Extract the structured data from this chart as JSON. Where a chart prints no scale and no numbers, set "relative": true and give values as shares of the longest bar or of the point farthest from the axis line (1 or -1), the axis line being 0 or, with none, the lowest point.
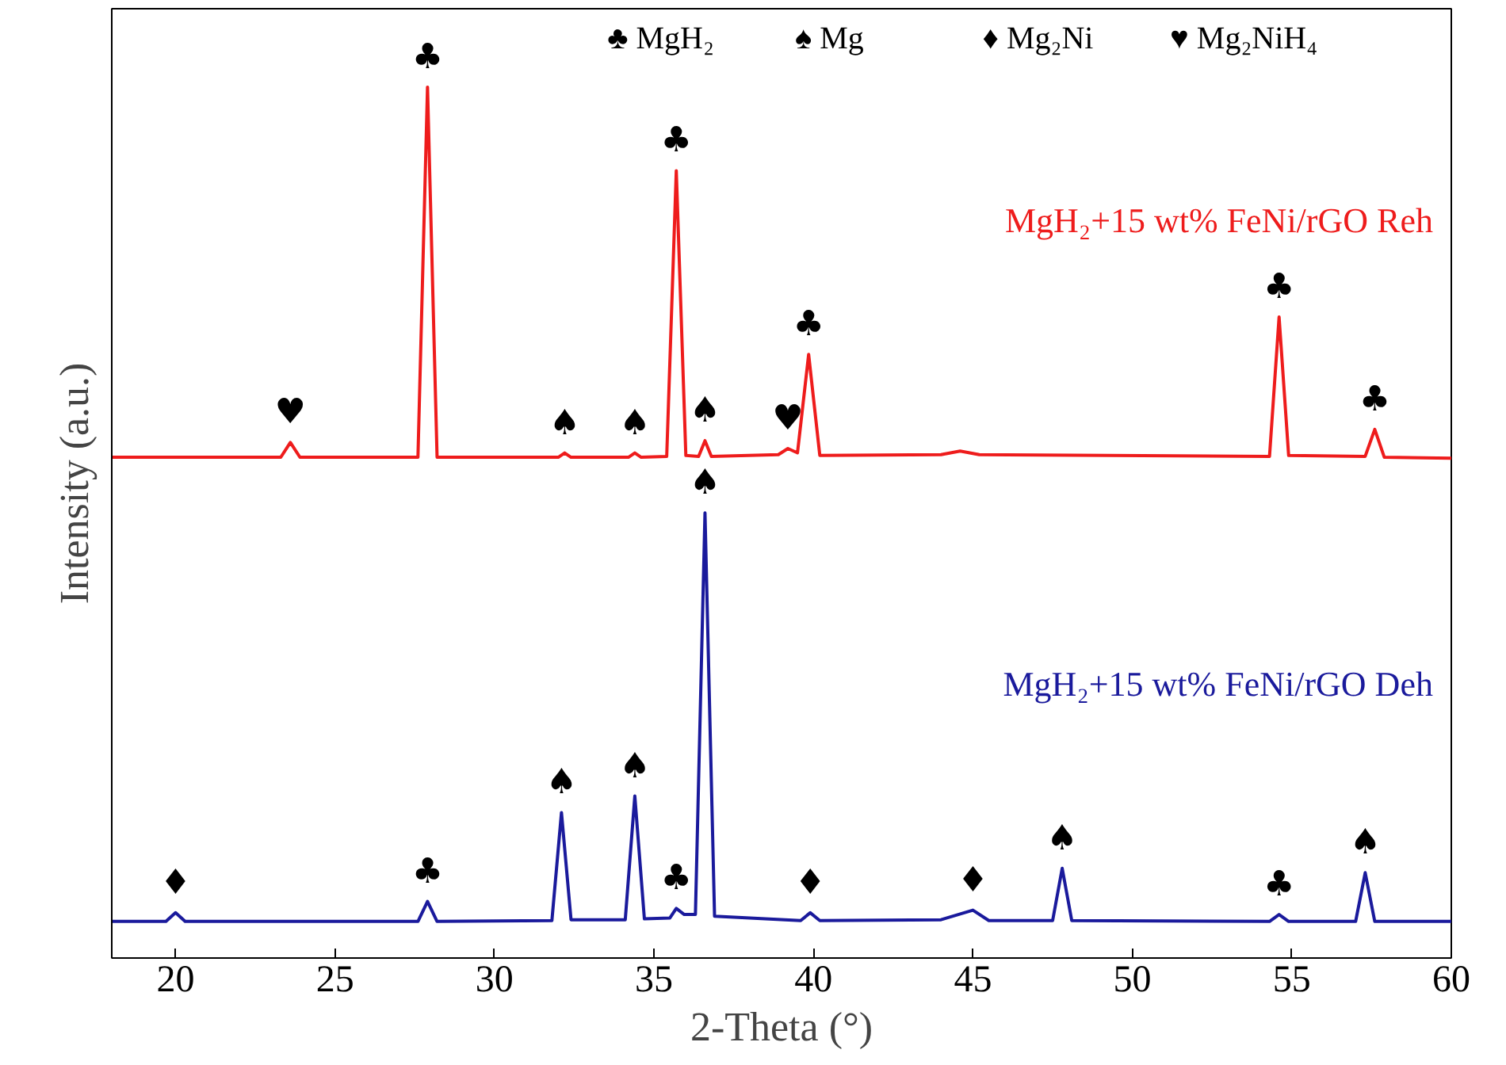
{
  "chart_data": {
    "type": "line",
    "relative": true,
    "xlabel": "2-Theta (°)",
    "ylabel": "Intensity (a.u.)",
    "xlim": [
      18,
      60
    ],
    "xticks": [
      20,
      25,
      30,
      35,
      40,
      45,
      50,
      55,
      60
    ],
    "tick_labels": "x",
    "grid": false,
    "line_style": "solid",
    "series": [
      {
        "name": "MgH₂+15 wt% FeNi/rGO  Reh",
        "color": "#ee1c1c",
        "x": [
          18,
          23.3,
          23.6,
          23.9,
          27.6,
          27.9,
          28.2,
          32.0,
          32.2,
          32.4,
          34.2,
          34.4,
          34.6,
          35.4,
          35.7,
          36.0,
          36.4,
          36.6,
          36.8,
          38.9,
          39.2,
          39.5,
          39.85,
          40.2,
          44.0,
          44.6,
          45.2,
          54.3,
          54.6,
          54.9,
          57.3,
          57.6,
          57.9,
          60
        ],
        "values": [
          0.575,
          0.575,
          0.592,
          0.575,
          0.575,
          1.0,
          0.575,
          0.575,
          0.58,
          0.575,
          0.575,
          0.58,
          0.575,
          0.576,
          0.904,
          0.577,
          0.576,
          0.594,
          0.576,
          0.578,
          0.585,
          0.58,
          0.693,
          0.577,
          0.578,
          0.582,
          0.578,
          0.576,
          0.736,
          0.577,
          0.576,
          0.607,
          0.575,
          0.574
        ]
      },
      {
        "name": "MgH₂+15 wt% FeNi/rGO  Deh",
        "color": "#1a1a9c",
        "x": [
          18,
          19.7,
          20.0,
          20.3,
          27.6,
          27.9,
          28.2,
          31.8,
          32.1,
          32.4,
          34.1,
          34.4,
          34.7,
          35.5,
          35.7,
          35.95,
          36.3,
          36.6,
          36.9,
          39.6,
          39.9,
          40.2,
          44.0,
          45.0,
          45.5,
          47.5,
          47.8,
          48.1,
          54.3,
          54.6,
          54.9,
          57.0,
          57.3,
          57.6,
          60
        ],
        "values": [
          0.042,
          0.042,
          0.052,
          0.042,
          0.042,
          0.065,
          0.042,
          0.043,
          0.167,
          0.044,
          0.044,
          0.186,
          0.045,
          0.046,
          0.057,
          0.05,
          0.05,
          0.511,
          0.048,
          0.043,
          0.052,
          0.043,
          0.044,
          0.055,
          0.043,
          0.043,
          0.103,
          0.043,
          0.042,
          0.05,
          0.042,
          0.042,
          0.098,
          0.042,
          0.042
        ]
      }
    ],
    "annotations": [
      "♣ MgH₂",
      "♠ Mg",
      "♦ Mg₂Ni",
      "♥ Mg₂NiH₄",
      {
        "text": "♥",
        "x": 23.6,
        "y": 0.592
      },
      {
        "text": "♣",
        "x": 27.9,
        "y": 1.0
      },
      {
        "text": "♠",
        "x": 32.2,
        "y": 0.58
      },
      {
        "text": "♠",
        "x": 34.4,
        "y": 0.58
      },
      {
        "text": "♣",
        "x": 35.7,
        "y": 0.904
      },
      {
        "text": "♠",
        "x": 36.6,
        "y": 0.594
      },
      {
        "text": "♥",
        "x": 39.2,
        "y": 0.585
      },
      {
        "text": "♣",
        "x": 39.85,
        "y": 0.693
      },
      {
        "text": "♣",
        "x": 54.6,
        "y": 0.736
      },
      {
        "text": "♣",
        "x": 57.6,
        "y": 0.607
      },
      {
        "text": "♦",
        "x": 20.0,
        "y": 0.052
      },
      {
        "text": "♣",
        "x": 27.9,
        "y": 0.065
      },
      {
        "text": "♠",
        "x": 32.1,
        "y": 0.167
      },
      {
        "text": "♠",
        "x": 34.4,
        "y": 0.186
      },
      {
        "text": "♣",
        "x": 35.7,
        "y": 0.057
      },
      {
        "text": "♠",
        "x": 36.6,
        "y": 0.511
      },
      {
        "text": "♦",
        "x": 39.9,
        "y": 0.052
      },
      {
        "text": "♦",
        "x": 45.0,
        "y": 0.055
      },
      {
        "text": "♠",
        "x": 47.8,
        "y": 0.103
      },
      {
        "text": "♣",
        "x": 54.6,
        "y": 0.05
      },
      {
        "text": "♠",
        "x": 57.3,
        "y": 0.098
      }
    ]
  }
}
